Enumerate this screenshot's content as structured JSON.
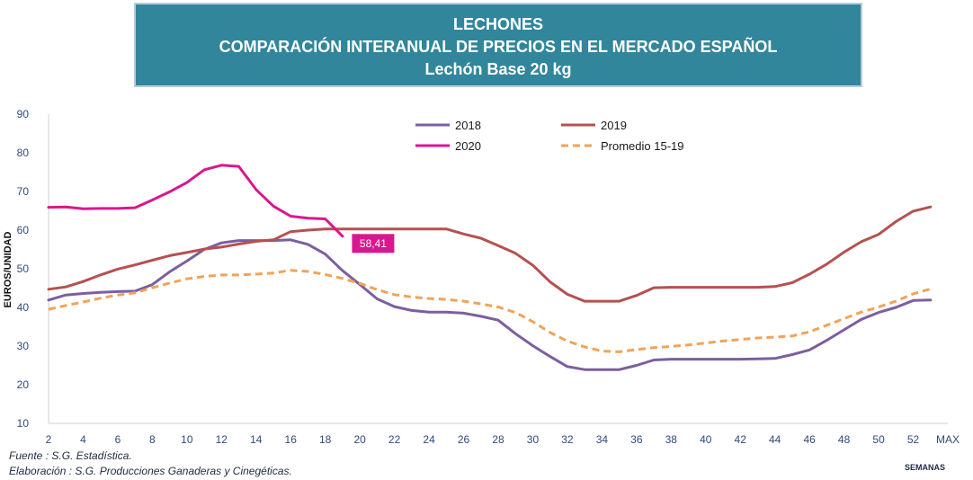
{
  "header": {
    "line1": "LECHONES",
    "line2": "COMPARACIÓN INTERANUAL DE PRECIOS EN EL MERCADO ESPAÑOL",
    "line3": "Lechón Base 20 kg"
  },
  "footer": {
    "source": "Fuente : S.G. Estadística.",
    "elaboration": "Elaboración : S.G. Producciones Ganaderas y Cinegéticas."
  },
  "chart_data": {
    "type": "line",
    "ylabel": "EUROS/UNIDAD",
    "xlabel": "SEMANAS",
    "ylim": [
      10,
      90
    ],
    "yticks": [
      10,
      20,
      30,
      40,
      50,
      60,
      70,
      80,
      90
    ],
    "xlim": [
      2,
      54
    ],
    "xticks": [
      "2",
      "4",
      "6",
      "8",
      "10",
      "12",
      "14",
      "16",
      "18",
      "20",
      "22",
      "24",
      "26",
      "28",
      "30",
      "32",
      "34",
      "36",
      "38",
      "40",
      "42",
      "44",
      "46",
      "48",
      "50",
      "52",
      "MAX"
    ],
    "xtick_values": [
      2,
      4,
      6,
      8,
      10,
      12,
      14,
      16,
      18,
      20,
      22,
      24,
      26,
      28,
      30,
      32,
      34,
      36,
      38,
      40,
      42,
      44,
      46,
      48,
      50,
      52,
      54
    ],
    "grid": false,
    "legend_position": "top",
    "series": [
      {
        "name": "2018",
        "color": "#7b5fa0",
        "dash": "solid",
        "x": [
          2,
          3,
          4,
          5,
          6,
          7,
          8,
          9,
          10,
          11,
          12,
          13,
          14,
          15,
          16,
          17,
          18,
          19,
          20,
          21,
          22,
          23,
          24,
          25,
          26,
          27,
          28,
          29,
          30,
          31,
          32,
          33,
          34,
          35,
          36,
          37,
          38,
          39,
          40,
          41,
          42,
          43,
          44,
          45,
          46,
          47,
          48,
          49,
          50,
          51,
          52,
          53
        ],
        "values": [
          41.9,
          43.2,
          43.6,
          43.9,
          44.1,
          44.2,
          45.9,
          49.2,
          52.0,
          55.0,
          56.7,
          57.3,
          57.3,
          57.3,
          57.5,
          56.3,
          53.8,
          49.5,
          45.9,
          42.2,
          40.2,
          39.2,
          38.8,
          38.8,
          38.5,
          37.7,
          36.7,
          33.2,
          30.1,
          27.3,
          24.7,
          23.9,
          23.9,
          23.9,
          25.0,
          26.4,
          26.6,
          26.6,
          26.6,
          26.6,
          26.6,
          26.7,
          26.8,
          27.8,
          29.0,
          31.5,
          34.2,
          36.9,
          38.7,
          40.0,
          41.8,
          41.9
        ]
      },
      {
        "name": "2019",
        "color": "#b5514f",
        "dash": "solid",
        "x": [
          2,
          3,
          4,
          5,
          6,
          7,
          8,
          9,
          10,
          11,
          12,
          13,
          14,
          15,
          16,
          17,
          18,
          19,
          20,
          21,
          22,
          23,
          24,
          25,
          26,
          27,
          28,
          29,
          30,
          31,
          32,
          33,
          34,
          35,
          36,
          37,
          38,
          39,
          40,
          41,
          42,
          43,
          44,
          45,
          46,
          47,
          48,
          49,
          50,
          51,
          52,
          53
        ],
        "values": [
          44.7,
          45.3,
          46.7,
          48.4,
          49.9,
          51.0,
          52.2,
          53.4,
          54.2,
          55.1,
          55.6,
          56.4,
          57.1,
          57.5,
          59.6,
          60.0,
          60.3,
          60.3,
          60.3,
          60.3,
          60.3,
          60.3,
          60.3,
          60.3,
          59.0,
          57.9,
          56.0,
          54.0,
          50.9,
          46.6,
          43.4,
          41.6,
          41.6,
          41.6,
          43.1,
          45.1,
          45.2,
          45.2,
          45.2,
          45.2,
          45.2,
          45.2,
          45.4,
          46.4,
          48.6,
          51.2,
          54.3,
          57.0,
          58.9,
          62.2,
          64.9,
          66.0
        ]
      },
      {
        "name": "2020",
        "color": "#d9178e",
        "dash": "solid",
        "x": [
          2,
          3,
          4,
          5,
          6,
          7,
          8,
          9,
          10,
          11,
          12,
          13,
          14,
          15,
          16,
          17,
          18,
          19
        ],
        "values": [
          65.9,
          66.0,
          65.5,
          65.6,
          65.6,
          65.8,
          67.8,
          69.9,
          72.3,
          75.6,
          76.8,
          76.5,
          70.5,
          66.2,
          63.6,
          63.1,
          62.9,
          58.41
        ]
      },
      {
        "name": "Promedio 15-19",
        "color": "#f0a35a",
        "dash": "dashed",
        "x": [
          2,
          3,
          4,
          5,
          6,
          7,
          8,
          9,
          10,
          11,
          12,
          13,
          14,
          15,
          16,
          17,
          18,
          19,
          20,
          21,
          22,
          23,
          24,
          25,
          26,
          27,
          28,
          29,
          30,
          31,
          32,
          33,
          34,
          35,
          36,
          37,
          38,
          39,
          40,
          41,
          42,
          43,
          44,
          45,
          46,
          47,
          48,
          49,
          50,
          51,
          52,
          53
        ],
        "values": [
          39.5,
          40.5,
          41.4,
          42.4,
          43.2,
          43.8,
          45.1,
          46.3,
          47.4,
          48.0,
          48.4,
          48.4,
          48.6,
          48.9,
          49.6,
          49.3,
          48.5,
          47.5,
          46.2,
          44.6,
          43.3,
          42.7,
          42.3,
          42.1,
          41.6,
          40.9,
          40.1,
          38.7,
          36.3,
          33.5,
          31.3,
          29.8,
          28.7,
          28.5,
          29.1,
          29.6,
          29.9,
          30.3,
          30.8,
          31.3,
          31.7,
          32.1,
          32.3,
          32.6,
          33.7,
          35.4,
          37.1,
          38.8,
          40.1,
          41.6,
          43.5,
          44.8
        ]
      }
    ],
    "annotation": {
      "text": "58,41",
      "series": "2020",
      "x": 19,
      "y": 58.41,
      "color": "#d9178e"
    }
  }
}
